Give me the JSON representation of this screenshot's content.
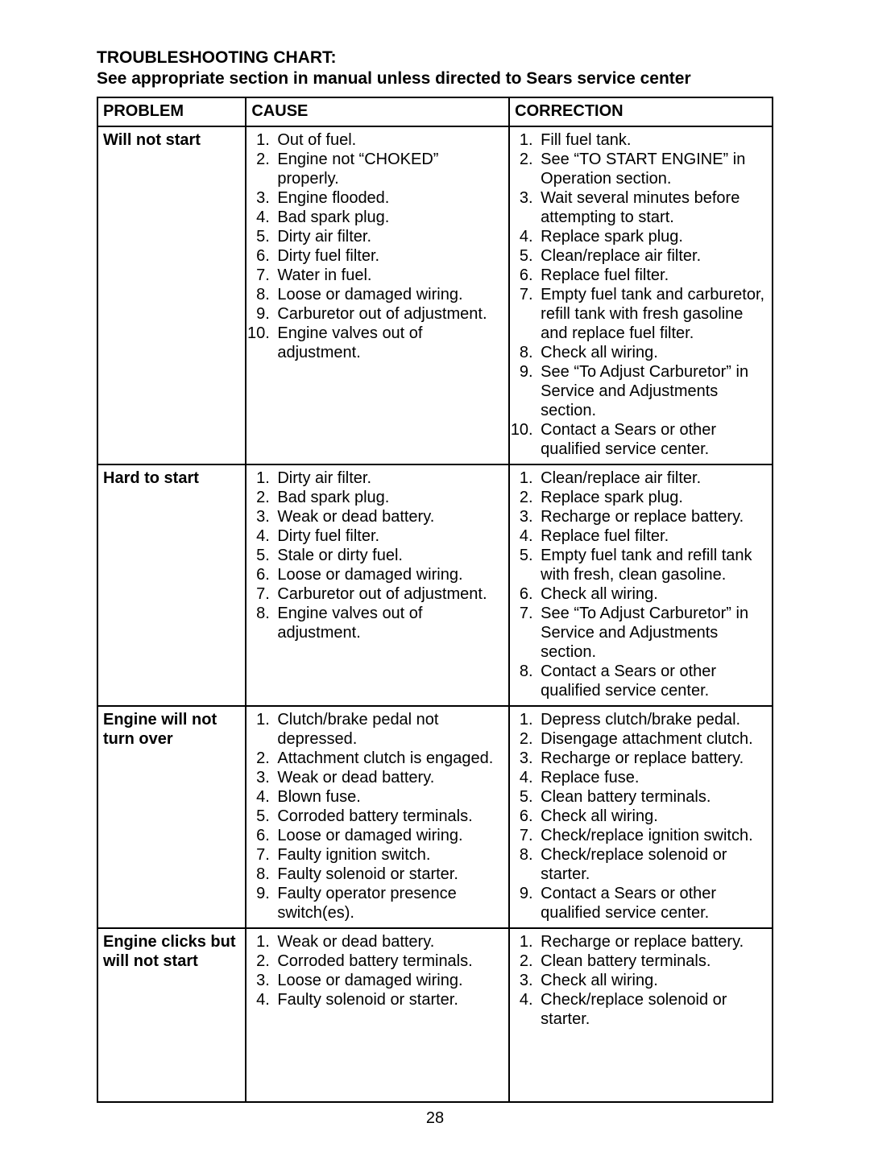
{
  "title": "TROUBLESHOOTING CHART:",
  "subtitle": "See appropriate section in manual unless directed to Sears service center",
  "columns": [
    "PROBLEM",
    "CAUSE",
    "CORRECTION"
  ],
  "page_number": "28",
  "rows": [
    {
      "problem": "Will not start",
      "causes": [
        "Out of fuel.",
        "Engine not “CHOKED” properly.",
        "Engine flooded.",
        "Bad spark plug.",
        "Dirty air filter.",
        "Dirty fuel filter.",
        "Water in fuel.",
        "Loose or damaged wiring.",
        "Carburetor out of adjustment.",
        "Engine valves out of adjustment."
      ],
      "corrections": [
        "Fill fuel tank.",
        "See “TO START ENGINE” in Operation section.",
        "Wait several minutes before attempting to start.",
        "Replace spark plug.",
        "Clean/replace air filter.",
        "Replace fuel filter.",
        "Empty fuel tank and carburetor, refill tank with fresh gasoline and replace fuel filter.",
        "Check all wiring.",
        "See “To Adjust Carburetor” in Service and Adjustments section.",
        "Contact a Sears or other qualified service center."
      ]
    },
    {
      "problem": "Hard to start",
      "causes": [
        "Dirty air filter.",
        "Bad spark plug.",
        "Weak or dead battery.",
        "Dirty fuel filter.",
        "Stale or dirty fuel.",
        "Loose or damaged wiring.",
        "Carburetor out of adjustment.",
        "Engine valves out of adjustment."
      ],
      "corrections": [
        "Clean/replace air filter.",
        "Replace spark plug.",
        "Recharge or replace battery.",
        "Replace fuel filter.",
        "Empty fuel tank and refill tank with fresh, clean gasoline.",
        "Check all wiring.",
        "See “To Adjust Carburetor” in Service and Adjustments section.",
        "Contact a Sears or other qualified service center."
      ]
    },
    {
      "problem": "Engine will not turn over",
      "causes": [
        "Clutch/brake pedal not depressed.",
        "Attachment clutch is engaged.",
        "Weak or dead battery.",
        "Blown fuse.",
        "Corroded battery terminals.",
        "Loose or damaged wiring.",
        "Faulty ignition switch.",
        "Faulty solenoid or starter.",
        "Faulty operator presence switch(es)."
      ],
      "corrections": [
        "Depress clutch/brake pedal.",
        "Disengage attachment clutch.",
        "Recharge or replace battery.",
        "Replace fuse.",
        "Clean battery terminals.",
        "Check all wiring.",
        "Check/replace ignition switch.",
        "Check/replace solenoid or starter.",
        "Contact a Sears or other qualified service center."
      ]
    },
    {
      "problem": "Engine clicks but will not start",
      "causes": [
        "Weak or dead battery.",
        "Corroded battery terminals.",
        "Loose or damaged wiring.",
        "Faulty solenoid or starter."
      ],
      "corrections": [
        "Recharge or replace battery.",
        "Clean battery terminals.",
        "Check all wiring.",
        "Check/replace solenoid or starter."
      ],
      "extra_pad": true
    }
  ]
}
